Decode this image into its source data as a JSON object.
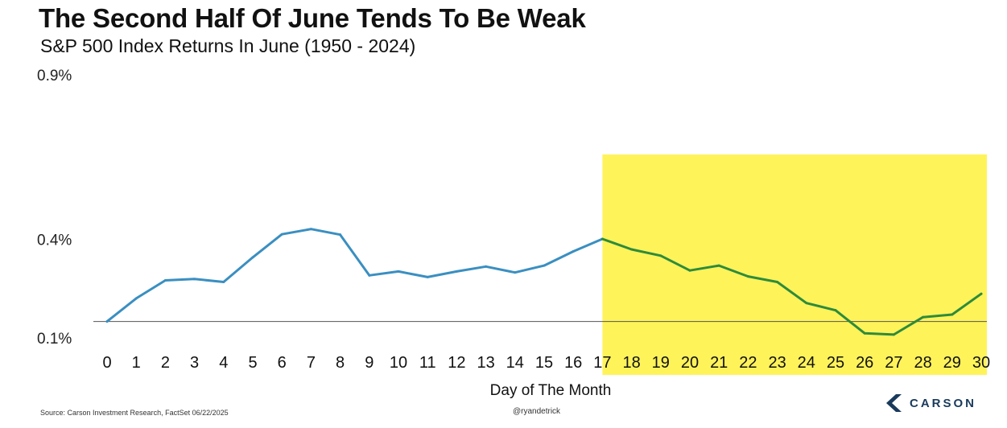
{
  "header": {
    "title": "The Second Half Of June Tends To Be Weak",
    "subtitle": "S&P 500 Index Returns In June (1950 - 2024)"
  },
  "footer": {
    "source": "Source: Carson Investment Research, FactSet 06/22/2025",
    "handle": "@ryandetrick",
    "logo_text": "CARSON"
  },
  "colors": {
    "line_normal": "#3a8fc1",
    "line_highlight": "#2e8b3a",
    "highlight_fill": "#fff35a",
    "baseline": "#555555",
    "logo": "#1a3a5c"
  },
  "chart_data": {
    "type": "line",
    "xlabel": "Day of The Month",
    "ylabel": "",
    "x": [
      0,
      1,
      2,
      3,
      4,
      5,
      6,
      7,
      8,
      9,
      10,
      11,
      12,
      13,
      14,
      15,
      16,
      17,
      18,
      19,
      20,
      21,
      22,
      23,
      24,
      25,
      26,
      27,
      28,
      29,
      30
    ],
    "series": [
      {
        "name": "",
        "values": [
          0.15,
          0.22,
          0.275,
          0.279,
          0.27,
          0.345,
          0.415,
          0.431,
          0.414,
          0.29,
          0.302,
          0.285,
          0.302,
          0.317,
          0.299,
          0.32,
          0.363,
          0.401,
          0.369,
          0.35,
          0.305,
          0.32,
          0.287,
          0.27,
          0.206,
          0.184,
          0.114,
          0.11,
          0.163,
          0.171,
          0.234
        ]
      }
    ],
    "ylim": [
      0.1,
      0.9
    ],
    "yticks": [
      0.1,
      0.4,
      0.9
    ],
    "ytick_labels": [
      "0.1%",
      "0.4%",
      "0.9%"
    ],
    "xtick_labels": [
      "0",
      "1",
      "2",
      "3",
      "4",
      "5",
      "6",
      "7",
      "8",
      "9",
      "10",
      "11",
      "12",
      "13",
      "14",
      "15",
      "16",
      "17",
      "18",
      "19",
      "20",
      "21",
      "22",
      "23",
      "24",
      "25",
      "26",
      "27",
      "28",
      "29",
      "30"
    ],
    "highlight_from_x": 17,
    "baseline_y": 0.15,
    "grid": false,
    "legend": "none"
  }
}
